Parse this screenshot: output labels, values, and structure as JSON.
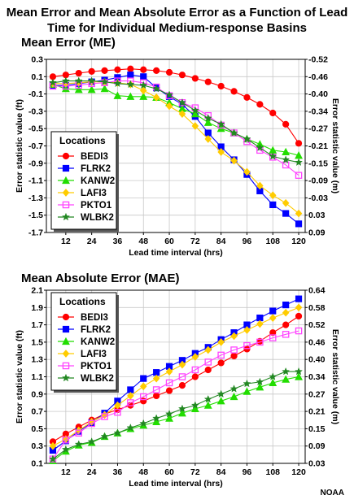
{
  "title": "Mean Error and Mean Absolute Error as a Function of Lead Time for Individual Medium-response Basins",
  "credit": "NOAA",
  "chart_data": [
    {
      "type": "line",
      "title": "Mean Error (ME)",
      "xlabel": "Lead time interval (hrs)",
      "ylabel": "Error statistic value (ft)",
      "y2label": "Error statistic value (m)",
      "x": [
        6,
        12,
        18,
        24,
        30,
        36,
        42,
        48,
        54,
        60,
        66,
        72,
        78,
        84,
        90,
        96,
        102,
        108,
        114,
        120
      ],
      "xticks": [
        12,
        24,
        36,
        48,
        60,
        72,
        84,
        96,
        108,
        120
      ],
      "xlim": [
        3,
        123
      ],
      "ylim": [
        -1.7,
        0.3
      ],
      "yticks": [
        -1.7,
        -1.5,
        -1.3,
        -1.1,
        -0.9,
        -0.7,
        -0.5,
        -0.3,
        -0.1,
        0.1,
        0.3
      ],
      "ytick_labels": [
        "-1.7",
        "-1.5",
        "-1.3",
        "-1.1",
        "-0.9",
        "-0.7",
        "-0.5",
        "-0.3",
        "-0.1",
        "0.1",
        "0.3"
      ],
      "y2ticks": [
        "0.09",
        "0.03",
        "-0.03",
        "-0.09",
        "-0.15",
        "-0.21",
        "-0.27",
        "-0.34",
        "-0.40",
        "-0.46",
        "-0.52"
      ],
      "grid": true,
      "legend": {
        "title": "Locations",
        "placement": "bottom-left"
      },
      "series": [
        {
          "name": "BEDI3",
          "color": "#ff0000",
          "marker": "circle",
          "values": [
            0.1,
            0.12,
            0.14,
            0.16,
            0.17,
            0.18,
            0.19,
            0.18,
            0.17,
            0.15,
            0.12,
            0.08,
            0.04,
            -0.01,
            -0.07,
            -0.14,
            -0.22,
            -0.32,
            -0.45,
            -0.67
          ]
        },
        {
          "name": "FLRK2",
          "color": "#0000ff",
          "marker": "square",
          "values": [
            0.0,
            0.0,
            0.02,
            0.04,
            0.06,
            0.09,
            0.12,
            0.1,
            -0.03,
            -0.13,
            -0.22,
            -0.36,
            -0.55,
            -0.71,
            -0.86,
            -1.03,
            -1.22,
            -1.38,
            -1.48,
            -1.6
          ]
        },
        {
          "name": "KANW2",
          "color": "#22dd00",
          "marker": "triangle",
          "values": [
            0.01,
            -0.04,
            -0.05,
            -0.05,
            -0.04,
            -0.12,
            -0.13,
            -0.13,
            -0.14,
            -0.2,
            -0.27,
            -0.33,
            -0.43,
            -0.5,
            -0.55,
            -0.62,
            -0.68,
            -0.75,
            -0.77,
            -0.81
          ]
        },
        {
          "name": "LAFI3",
          "color": "#ffcc00",
          "marker": "diamond",
          "values": [
            0.02,
            0.02,
            0.03,
            0.04,
            0.04,
            0.03,
            0.01,
            -0.06,
            -0.14,
            -0.24,
            -0.33,
            -0.47,
            -0.62,
            -0.77,
            -0.87,
            -1.0,
            -1.16,
            -1.27,
            -1.36,
            -1.48
          ]
        },
        {
          "name": "PKTO1",
          "color": "#ff44ff",
          "marker": "square-open",
          "values": [
            -0.01,
            -0.01,
            0.0,
            0.02,
            0.03,
            0.05,
            0.05,
            0.03,
            -0.02,
            -0.12,
            -0.2,
            -0.26,
            -0.35,
            -0.46,
            -0.55,
            -0.65,
            -0.75,
            -0.83,
            -0.92,
            -1.04
          ]
        },
        {
          "name": "WLBK2",
          "color": "#228822",
          "marker": "star",
          "values": [
            0.03,
            0.05,
            0.05,
            0.05,
            0.04,
            0.02,
            0.01,
            0.0,
            -0.04,
            -0.11,
            -0.2,
            -0.29,
            -0.38,
            -0.45,
            -0.55,
            -0.62,
            -0.72,
            -0.82,
            -0.86,
            -0.89
          ]
        }
      ]
    },
    {
      "type": "line",
      "title": "Mean Absolute Error (MAE)",
      "xlabel": "Lead time interval (hrs)",
      "ylabel": "Error statistic value (ft)",
      "y2label": "Error statistic value (m)",
      "x": [
        6,
        12,
        18,
        24,
        30,
        36,
        42,
        48,
        54,
        60,
        66,
        72,
        78,
        84,
        90,
        96,
        102,
        108,
        114,
        120
      ],
      "xticks": [
        12,
        24,
        36,
        48,
        60,
        72,
        84,
        96,
        108,
        120
      ],
      "xlim": [
        3,
        123
      ],
      "ylim": [
        0.1,
        2.1
      ],
      "yticks": [
        0.1,
        0.3,
        0.5,
        0.7,
        0.9,
        1.1,
        1.3,
        1.5,
        1.7,
        1.9,
        2.1
      ],
      "ytick_labels": [
        "0.1",
        "0.3",
        "0.5",
        "0.7",
        "0.9",
        "1.1",
        "1.3",
        "1.5",
        "1.7",
        "1.9",
        "2.1"
      ],
      "y2ticks": [
        "0.03",
        "0.09",
        "0.15",
        "0.21",
        "0.27",
        "0.34",
        "0.40",
        "0.46",
        "0.52",
        "0.58",
        "0.64"
      ],
      "grid": true,
      "legend": {
        "title": "Locations",
        "placement": "top-left"
      },
      "series": [
        {
          "name": "BEDI3",
          "color": "#ff0000",
          "marker": "circle",
          "values": [
            0.35,
            0.44,
            0.52,
            0.6,
            0.67,
            0.72,
            0.77,
            0.82,
            0.88,
            0.94,
            1.0,
            1.1,
            1.18,
            1.26,
            1.34,
            1.42,
            1.51,
            1.61,
            1.7,
            1.8
          ]
        },
        {
          "name": "FLRK2",
          "color": "#0000ff",
          "marker": "square",
          "values": [
            0.25,
            0.36,
            0.47,
            0.57,
            0.68,
            0.82,
            0.95,
            1.08,
            1.15,
            1.22,
            1.29,
            1.37,
            1.44,
            1.53,
            1.61,
            1.7,
            1.78,
            1.86,
            1.93,
            2.0
          ]
        },
        {
          "name": "KANW2",
          "color": "#22dd00",
          "marker": "triangle",
          "values": [
            0.13,
            0.24,
            0.31,
            0.34,
            0.41,
            0.45,
            0.5,
            0.54,
            0.58,
            0.62,
            0.68,
            0.73,
            0.77,
            0.82,
            0.87,
            0.93,
            0.98,
            1.03,
            1.07,
            1.1
          ]
        },
        {
          "name": "LAFI3",
          "color": "#ffcc00",
          "marker": "diamond",
          "values": [
            0.3,
            0.38,
            0.48,
            0.58,
            0.66,
            0.77,
            0.88,
            0.99,
            1.08,
            1.16,
            1.24,
            1.33,
            1.41,
            1.5,
            1.57,
            1.64,
            1.71,
            1.78,
            1.84,
            1.9
          ]
        },
        {
          "name": "PKTO1",
          "color": "#ff44ff",
          "marker": "square-open",
          "values": [
            0.15,
            0.37,
            0.45,
            0.56,
            0.64,
            0.69,
            0.8,
            0.87,
            0.95,
            1.03,
            1.1,
            1.18,
            1.27,
            1.35,
            1.41,
            1.46,
            1.5,
            1.55,
            1.59,
            1.63
          ]
        },
        {
          "name": "WLBK2",
          "color": "#228822",
          "marker": "star",
          "values": [
            0.15,
            0.26,
            0.32,
            0.35,
            0.41,
            0.45,
            0.51,
            0.56,
            0.62,
            0.67,
            0.73,
            0.77,
            0.84,
            0.9,
            0.96,
            1.02,
            1.04,
            1.1,
            1.16,
            1.16
          ]
        }
      ]
    }
  ]
}
